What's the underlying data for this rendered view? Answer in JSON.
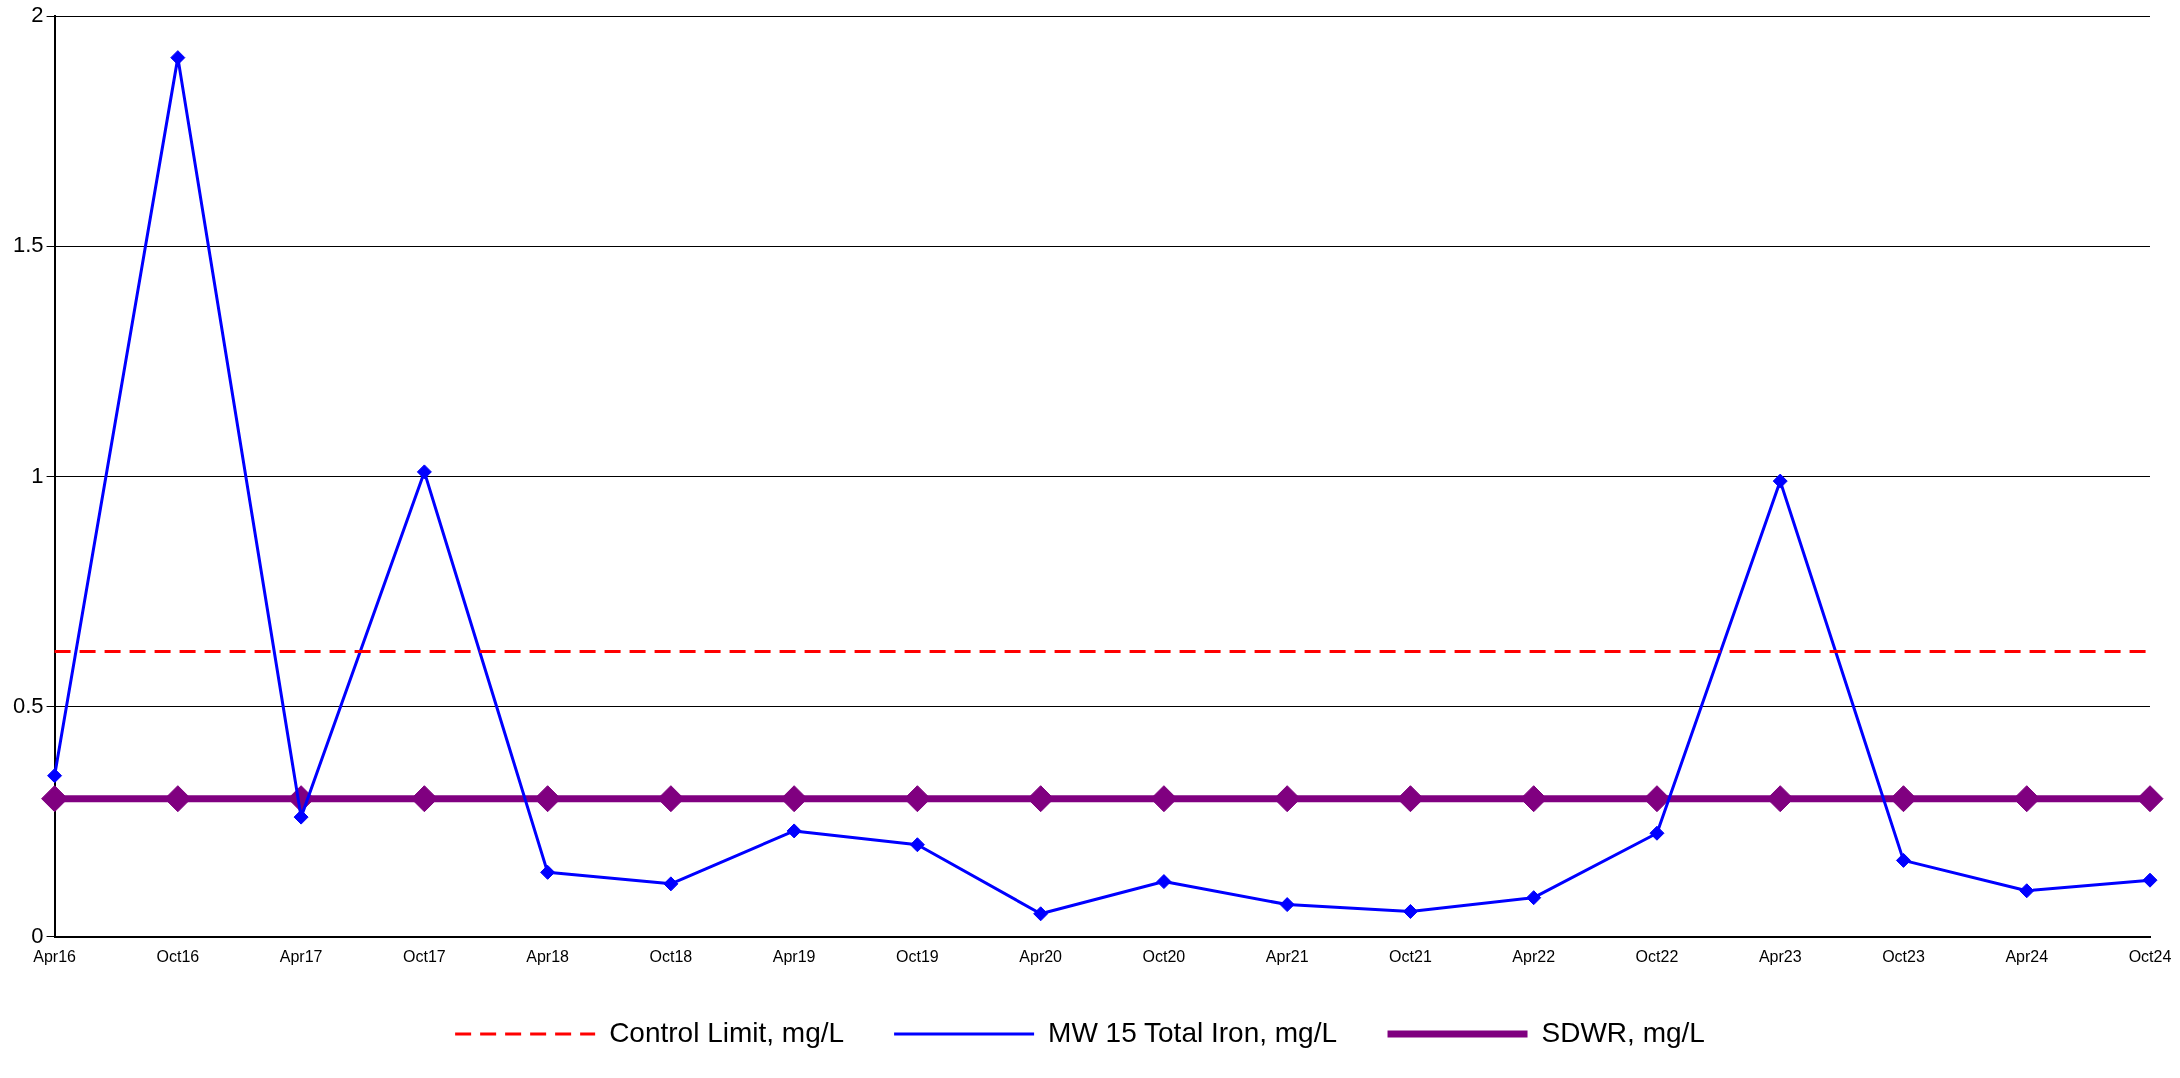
{
  "chart_data": {
    "type": "line",
    "categories": [
      "Apr16",
      "Oct16",
      "Apr17",
      "Oct17",
      "Apr18",
      "Oct18",
      "Apr19",
      "Oct19",
      "Apr20",
      "Oct20",
      "Apr21",
      "Oct21",
      "Apr22",
      "Oct22",
      "Apr23",
      "Oct23",
      "Apr24",
      "Oct24"
    ],
    "series": [
      {
        "name": "Control Limit, mg/L",
        "color": "#ff0000",
        "line_style": "dashed",
        "marker": "none",
        "values": [
          0.62,
          0.62,
          0.62,
          0.62,
          0.62,
          0.62,
          0.62,
          0.62,
          0.62,
          0.62,
          0.62,
          0.62,
          0.62,
          0.62,
          0.62,
          0.62,
          0.62,
          0.62
        ]
      },
      {
        "name": "MW 15 Total Iron, mg/L",
        "color": "#0000ff",
        "line_style": "solid",
        "marker": "diamond",
        "values": [
          0.35,
          1.91,
          0.26,
          1.01,
          0.14,
          0.115,
          0.23,
          0.2,
          0.05,
          0.12,
          0.07,
          0.055,
          0.085,
          0.225,
          0.99,
          0.166,
          0.1,
          0.123
        ]
      },
      {
        "name": "SDWR, mg/L",
        "color": "#800080",
        "line_style": "solid",
        "marker": "diamond",
        "values": [
          0.3,
          0.3,
          0.3,
          0.3,
          0.3,
          0.3,
          0.3,
          0.3,
          0.3,
          0.3,
          0.3,
          0.3,
          0.3,
          0.3,
          0.3,
          0.3,
          0.3,
          0.3
        ]
      }
    ],
    "ylim": [
      0,
      2
    ],
    "yticks": [
      0,
      0.5,
      1,
      1.5,
      2
    ],
    "grid": "y",
    "legend": "bottom"
  }
}
